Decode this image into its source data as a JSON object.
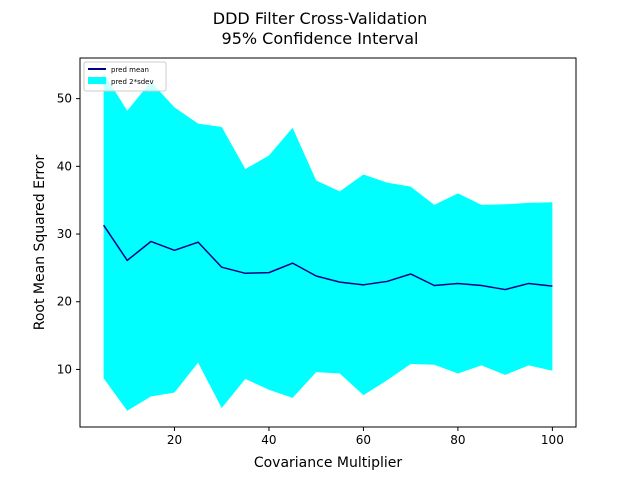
{
  "chart_data": {
    "type": "area",
    "title": "DDD Filter Cross-Validation",
    "subtitle": "95% Confidence Interval",
    "xlabel": "Covariance Multiplier",
    "ylabel": "Root Mean Squared Error",
    "xlim": [
      0,
      105
    ],
    "ylim": [
      1.5,
      56
    ],
    "xticks": [
      20,
      40,
      60,
      80,
      100
    ],
    "yticks": [
      10,
      20,
      30,
      40,
      50
    ],
    "grid": false,
    "legend_position": "top-left",
    "x": [
      5,
      10,
      15,
      20,
      25,
      30,
      35,
      40,
      45,
      50,
      55,
      60,
      65,
      70,
      75,
      80,
      85,
      90,
      95,
      100
    ],
    "series": [
      {
        "name": "pred mean",
        "kind": "line",
        "color": "#00008b",
        "values": [
          31.3,
          26.1,
          28.9,
          27.6,
          28.8,
          25.1,
          24.2,
          24.3,
          25.7,
          23.8,
          22.9,
          22.5,
          23.0,
          24.1,
          22.4,
          22.7,
          22.4,
          21.8,
          22.7,
          22.3
        ]
      },
      {
        "name": "pred 2*sdev",
        "kind": "band",
        "color": "#00ffff",
        "upper": [
          53.8,
          48.2,
          52.5,
          48.7,
          46.3,
          45.8,
          39.6,
          41.6,
          45.7,
          37.9,
          36.3,
          38.8,
          37.6,
          37.0,
          34.3,
          36.0,
          34.3,
          34.4,
          34.6,
          34.7
        ],
        "lower": [
          8.7,
          3.9,
          6.0,
          6.6,
          11.0,
          4.3,
          8.6,
          7.0,
          5.8,
          9.6,
          9.4,
          6.2,
          8.4,
          10.8,
          10.7,
          9.4,
          10.6,
          9.2,
          10.6,
          9.8
        ]
      }
    ]
  }
}
